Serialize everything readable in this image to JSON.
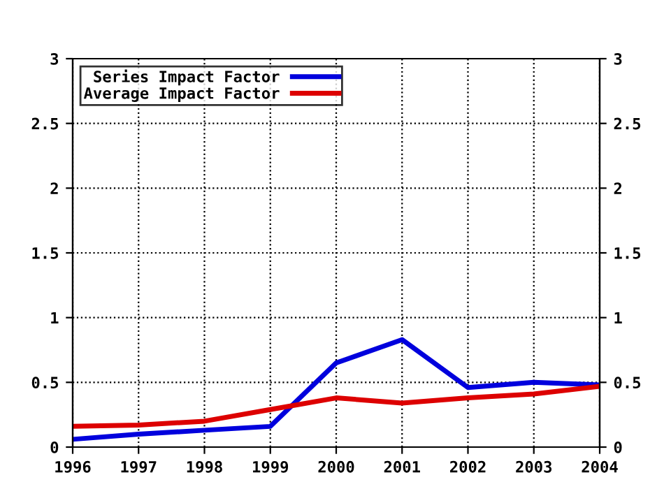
{
  "chart_data": {
    "type": "line",
    "x": [
      1996,
      1997,
      1998,
      1999,
      2000,
      2001,
      2002,
      2003,
      2004
    ],
    "series": [
      {
        "name": "Series Impact Factor",
        "color": "#0000dd",
        "values": [
          0.06,
          0.1,
          0.13,
          0.16,
          0.65,
          0.83,
          0.46,
          0.5,
          0.48
        ]
      },
      {
        "name": "Average Impact Factor",
        "color": "#dd0000",
        "values": [
          0.16,
          0.17,
          0.2,
          0.29,
          0.38,
          0.34,
          0.38,
          0.41,
          0.47
        ]
      }
    ],
    "xlim": [
      1996,
      2004
    ],
    "xticks": [
      1996,
      1997,
      1998,
      1999,
      2000,
      2001,
      2002,
      2003,
      2004
    ],
    "ylim": [
      0,
      3
    ],
    "yticks": [
      0,
      0.5,
      1,
      1.5,
      2,
      2.5,
      3
    ],
    "y2lim": [
      0,
      3
    ],
    "y2ticks": [
      0,
      0.5,
      1,
      1.5,
      2,
      2.5,
      3
    ],
    "grid": true,
    "legend": "top left",
    "marker": "none",
    "line_style": "solid"
  }
}
